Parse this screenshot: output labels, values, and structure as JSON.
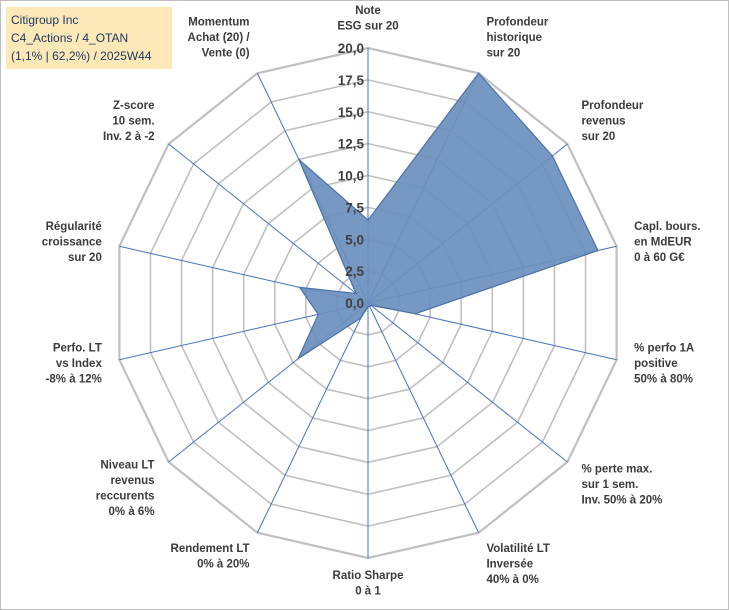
{
  "header": {
    "line1": "Citigroup Inc",
    "line2": "C4_Actions / 4_OTAN",
    "line3": "(1,1% | 62,2%) / 2025W44"
  },
  "chart_data": {
    "type": "radar",
    "rmin": 0,
    "rmax": 20,
    "ticks": [
      "0,0",
      "2,5",
      "5,0",
      "7,5",
      "10,0",
      "12,5",
      "15,0",
      "17,5",
      "20,0"
    ],
    "grid": true,
    "colors": {
      "fill": "#6b8fbe",
      "stroke": "#4a72a8",
      "grid": "#c0c0c0",
      "spoke": "#4472c4"
    },
    "axes": [
      {
        "label": [
          "Note",
          "ESG sur 20"
        ],
        "value": 6.5
      },
      {
        "label": [
          "Profondeur",
          "historique",
          "sur 20"
        ],
        "value": 20
      },
      {
        "label": [
          "Profondeur",
          "revenus",
          "sur 20"
        ],
        "value": 18.5
      },
      {
        "label": [
          "Capl. bours.",
          "en MdEUR",
          "0 à 60 G€"
        ],
        "value": 18.5
      },
      {
        "label": [
          "% perfo 1A",
          "positive",
          "50% à 80%"
        ],
        "value": 3.8
      },
      {
        "label": [
          "% perte max.",
          "sur 1 sem.",
          "Inv. 50% à 20%"
        ],
        "value": 0.3
      },
      {
        "label": [
          "Volatilité LT",
          "Inversée",
          "40% à 0%"
        ],
        "value": 0.3
      },
      {
        "label": [
          "Ratio Sharpe",
          "0 à 1"
        ],
        "value": 0.3
      },
      {
        "label": [
          "Rendement LT",
          "0% à 20%"
        ],
        "value": 1.3
      },
      {
        "label": [
          "Niveau LT",
          "revenus",
          "reccurents",
          "0% à 6%"
        ],
        "value": 7.0
      },
      {
        "label": [
          "Perfo. LT",
          "vs Index",
          "-8% à 12%"
        ],
        "value": 4.0
      },
      {
        "label": [
          "Régularité",
          "croissance",
          "sur 20"
        ],
        "value": 5.5
      },
      {
        "label": [
          "Z-score",
          "10 sem.",
          "Inv. 2 à -2"
        ],
        "value": 1.2
      },
      {
        "label": [
          "Momentum",
          "Achat (20) /",
          "Vente (0)"
        ],
        "value": 12.5
      }
    ]
  }
}
